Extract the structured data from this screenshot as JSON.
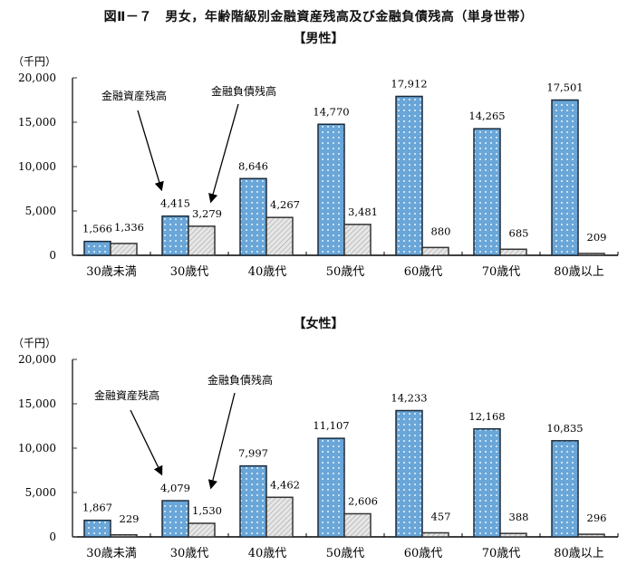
{
  "figure": {
    "title": "図Ⅱ－７　男女，年齢階級別金融資産残高及び金融負債残高（単身世帯）"
  },
  "colors": {
    "asset": "#6aa6d8",
    "asset_dot": "#c9e2f5",
    "debt": "#e6e6e6",
    "debt_hatch": "#9a9a9a",
    "axis": "#333333"
  },
  "chart_data": [
    {
      "type": "bar",
      "title": "【男性】",
      "ylabel": "（千円）",
      "xlabel": "",
      "ylim": [
        0,
        20000
      ],
      "yticks": [
        0,
        5000,
        10000,
        15000,
        20000
      ],
      "ytick_labels": [
        "0",
        "5,000",
        "10,000",
        "15,000",
        "20,000"
      ],
      "categories": [
        "30歳未満",
        "30歳代",
        "40歳代",
        "50歳代",
        "60歳代",
        "70歳代",
        "80歳以上"
      ],
      "series": [
        {
          "name": "金融資産残高",
          "values": [
            1566,
            4415,
            8646,
            14770,
            17912,
            14265,
            17501
          ],
          "labels": [
            "1,566",
            "4,415",
            "8,646",
            "14,770",
            "17,912",
            "14,265",
            "17,501"
          ]
        },
        {
          "name": "金融負債残高",
          "values": [
            1336,
            3279,
            4267,
            3481,
            880,
            685,
            209
          ],
          "labels": [
            "1,336",
            "3,279",
            "4,267",
            "3,481",
            "880",
            "685",
            "209"
          ]
        }
      ],
      "annotations": [
        {
          "text": "金融資産残高",
          "points_to": "30歳代 金融資産残高"
        },
        {
          "text": "金融負債残高",
          "points_to": "30歳代 金融負債残高"
        }
      ],
      "grid": false,
      "legend": "annotation-arrows"
    },
    {
      "type": "bar",
      "title": "【女性】",
      "ylabel": "（千円）",
      "xlabel": "",
      "ylim": [
        0,
        20000
      ],
      "yticks": [
        0,
        5000,
        10000,
        15000,
        20000
      ],
      "ytick_labels": [
        "0",
        "5,000",
        "10,000",
        "15,000",
        "20,000"
      ],
      "categories": [
        "30歳未満",
        "30歳代",
        "40歳代",
        "50歳代",
        "60歳代",
        "70歳代",
        "80歳以上"
      ],
      "series": [
        {
          "name": "金融資産残高",
          "values": [
            1867,
            4079,
            7997,
            11107,
            14233,
            12168,
            10835
          ],
          "labels": [
            "1,867",
            "4,079",
            "7,997",
            "11,107",
            "14,233",
            "12,168",
            "10,835"
          ]
        },
        {
          "name": "金融負債残高",
          "values": [
            229,
            1530,
            4462,
            2606,
            457,
            388,
            296
          ],
          "labels": [
            "229",
            "1,530",
            "4,462",
            "2,606",
            "457",
            "388",
            "296"
          ]
        }
      ],
      "annotations": [
        {
          "text": "金融資産残高",
          "points_to": "30歳代 金融資産残高"
        },
        {
          "text": "金融負債残高",
          "points_to": "30歳代 金融負債残高"
        }
      ],
      "grid": false,
      "legend": "annotation-arrows"
    }
  ]
}
